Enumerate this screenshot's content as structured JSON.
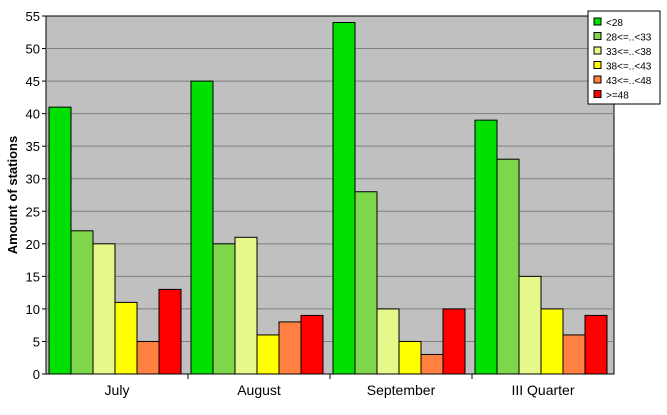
{
  "chart_data": {
    "type": "bar",
    "title": "",
    "xlabel": "",
    "ylabel": "Amount of stations",
    "ylim": [
      0,
      55
    ],
    "ytick_step": 5,
    "grid": true,
    "legend_position": "top-right",
    "plot_background": "#c0c0c0",
    "categories": [
      "July",
      "August",
      "September",
      "III Quarter"
    ],
    "series": [
      {
        "name": "<28",
        "color": "#00e000",
        "values": [
          41,
          45,
          54,
          39
        ]
      },
      {
        "name": "28<=..<33",
        "color": "#7ed64a",
        "values": [
          22,
          20,
          28,
          33
        ]
      },
      {
        "name": "33<=..<38",
        "color": "#e6f88a",
        "values": [
          20,
          21,
          10,
          15
        ]
      },
      {
        "name": "38<=..<43",
        "color": "#ffff00",
        "values": [
          11,
          6,
          5,
          10
        ]
      },
      {
        "name": "43<=..<48",
        "color": "#ff8040",
        "values": [
          5,
          8,
          3,
          6
        ]
      },
      {
        "name": ">=48",
        "color": "#ff0000",
        "values": [
          13,
          9,
          10,
          9
        ]
      }
    ]
  }
}
